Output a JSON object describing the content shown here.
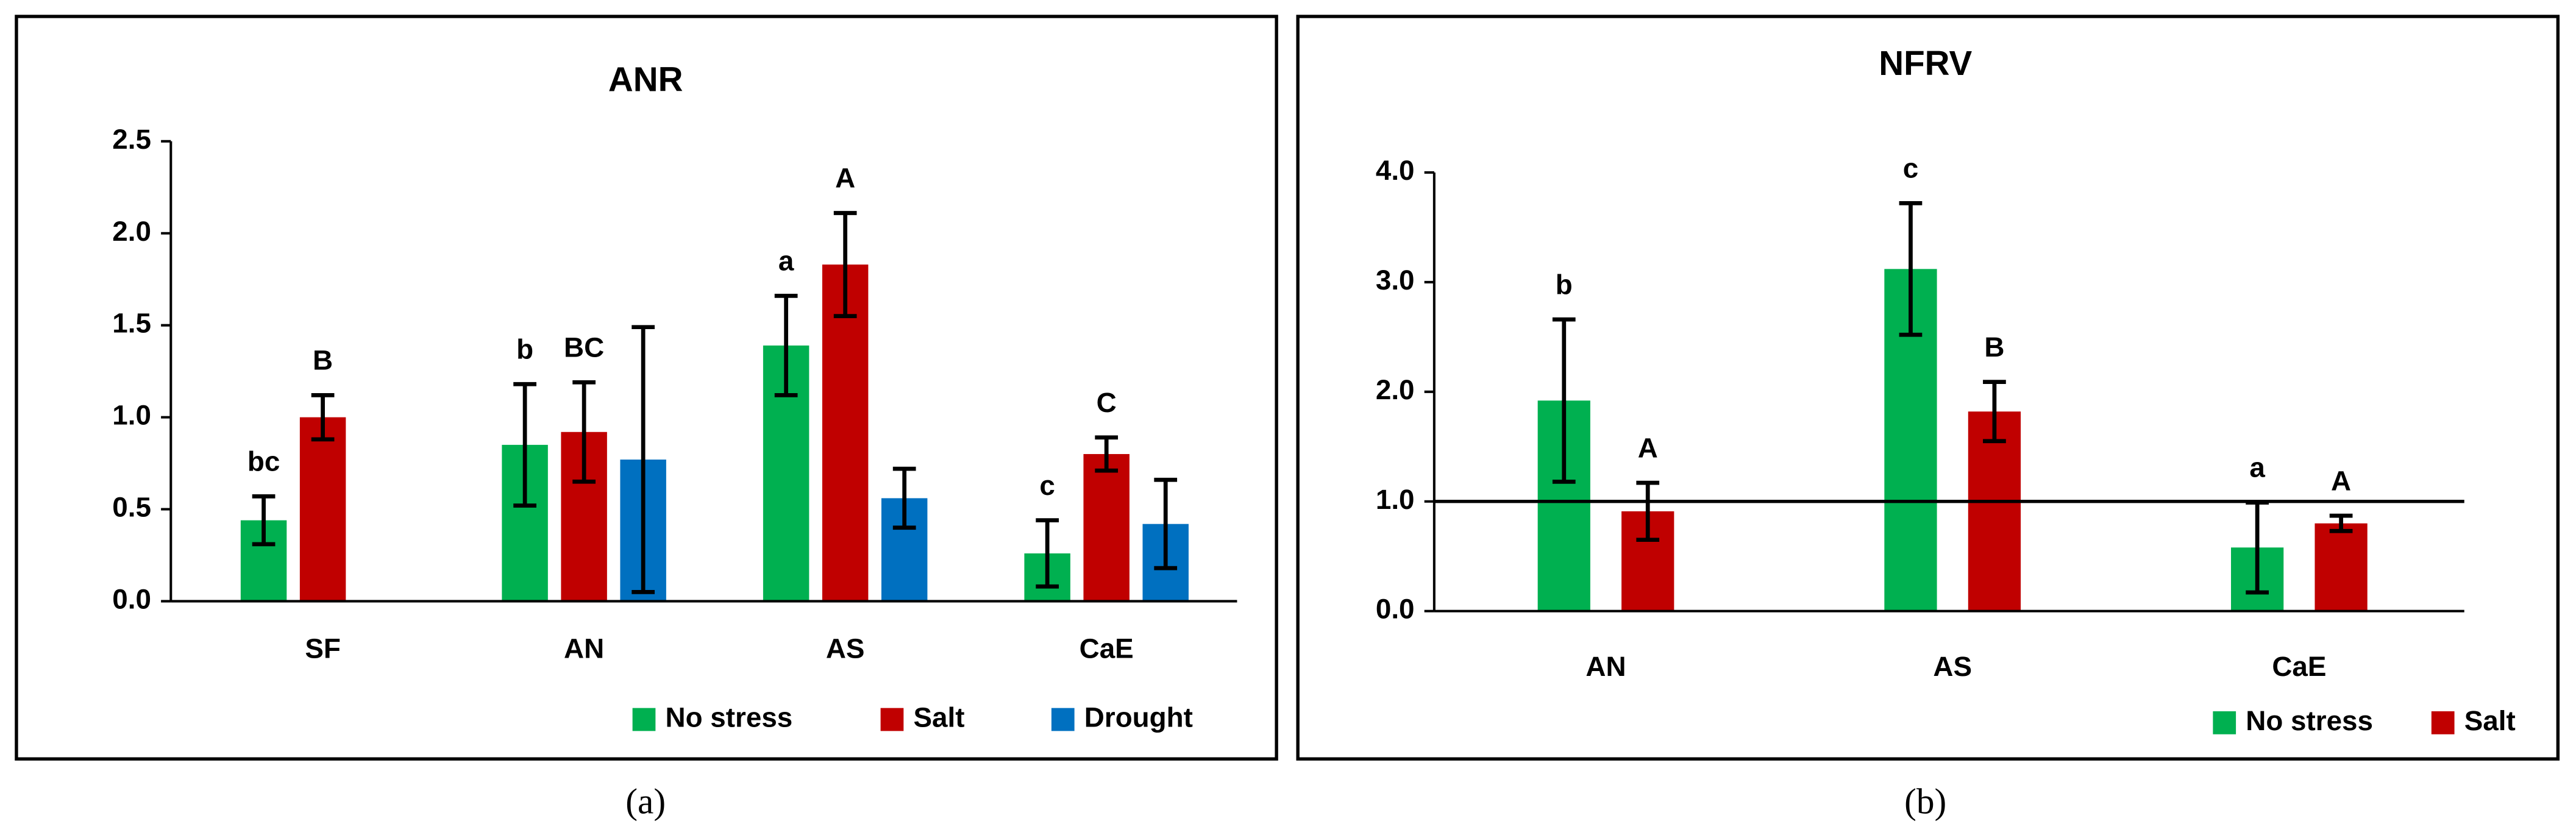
{
  "chart_data": [
    {
      "type": "bar",
      "title": "ANR",
      "caption": "(a)",
      "categories": [
        "SF",
        "AN",
        "AS",
        "CaE"
      ],
      "series": [
        {
          "name": "No stress",
          "color": "#00b050",
          "values": [
            0.44,
            0.85,
            1.39,
            0.26
          ],
          "errors": [
            0.13,
            0.33,
            0.27,
            0.18
          ],
          "letters": [
            "bc",
            "b",
            "a",
            "c"
          ]
        },
        {
          "name": "Salt",
          "color": "#c00000",
          "values": [
            1.0,
            0.92,
            1.83,
            0.8
          ],
          "errors": [
            0.12,
            0.27,
            0.28,
            0.09
          ],
          "letters": [
            "B",
            "BC",
            "A",
            "C"
          ]
        },
        {
          "name": "Drought",
          "color": "#0070c0",
          "values": [
            null,
            0.77,
            0.56,
            0.42
          ],
          "errors": [
            null,
            0.72,
            0.16,
            0.24
          ]
        }
      ],
      "ylim": [
        0,
        2.5
      ],
      "yticks": [
        {
          "value": 0,
          "label": "0.0"
        },
        {
          "value": 0.5,
          "label": "0.5"
        },
        {
          "value": 1,
          "label": "1.0"
        },
        {
          "value": 1.5,
          "label": "1.5"
        },
        {
          "value": 2,
          "label": "2.0"
        },
        {
          "value": 2.5,
          "label": "2.5"
        }
      ]
    },
    {
      "type": "bar",
      "title": "NFRV",
      "caption": "(b)",
      "categories": [
        "AN",
        "AS",
        "CaE"
      ],
      "series": [
        {
          "name": "No stress",
          "color": "#00b050",
          "values": [
            1.92,
            3.12,
            0.58
          ],
          "errors": [
            0.74,
            0.6,
            0.41
          ],
          "letters": [
            "b",
            "c",
            "a"
          ]
        },
        {
          "name": "Salt",
          "color": "#c00000",
          "values": [
            0.91,
            1.82,
            0.8
          ],
          "errors": [
            0.26,
            0.27,
            0.07
          ],
          "letters": [
            "A",
            "B",
            "A"
          ]
        }
      ],
      "reference_line": 1,
      "ylim": [
        0,
        4
      ],
      "yticks": [
        {
          "value": 0,
          "label": "0.0"
        },
        {
          "value": 1,
          "label": "1.0"
        },
        {
          "value": 2,
          "label": "2.0"
        },
        {
          "value": 3,
          "label": "3.0"
        },
        {
          "value": 4,
          "label": "4.0"
        }
      ]
    }
  ]
}
